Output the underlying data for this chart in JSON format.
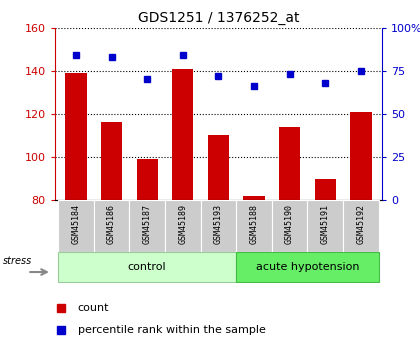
{
  "title": "GDS1251 / 1376252_at",
  "samples": [
    "GSM45184",
    "GSM45186",
    "GSM45187",
    "GSM45189",
    "GSM45193",
    "GSM45188",
    "GSM45190",
    "GSM45191",
    "GSM45192"
  ],
  "counts": [
    139,
    116,
    99,
    141,
    110,
    82,
    114,
    90,
    121
  ],
  "percentiles": [
    84,
    83,
    70,
    84,
    72,
    66,
    73,
    68,
    75
  ],
  "groups": [
    {
      "label": "control",
      "start": 0,
      "end": 5
    },
    {
      "label": "acute hypotension",
      "start": 5,
      "end": 9
    }
  ],
  "ylim_left": [
    80,
    160
  ],
  "ylim_right": [
    0,
    100
  ],
  "yticks_left": [
    80,
    100,
    120,
    140,
    160
  ],
  "yticks_right": [
    0,
    25,
    50,
    75,
    100
  ],
  "ytick_labels_right": [
    "0",
    "25",
    "50",
    "75",
    "100%"
  ],
  "bar_color": "#cc0000",
  "dot_color": "#0000cc",
  "left_tick_color": "#cc0000",
  "right_tick_color": "#0000cc",
  "control_color": "#ccffcc",
  "acute_color": "#66ee66",
  "sample_bg_color": "#cccccc",
  "stress_label": "stress",
  "legend_items": [
    "count",
    "percentile rank within the sample"
  ]
}
